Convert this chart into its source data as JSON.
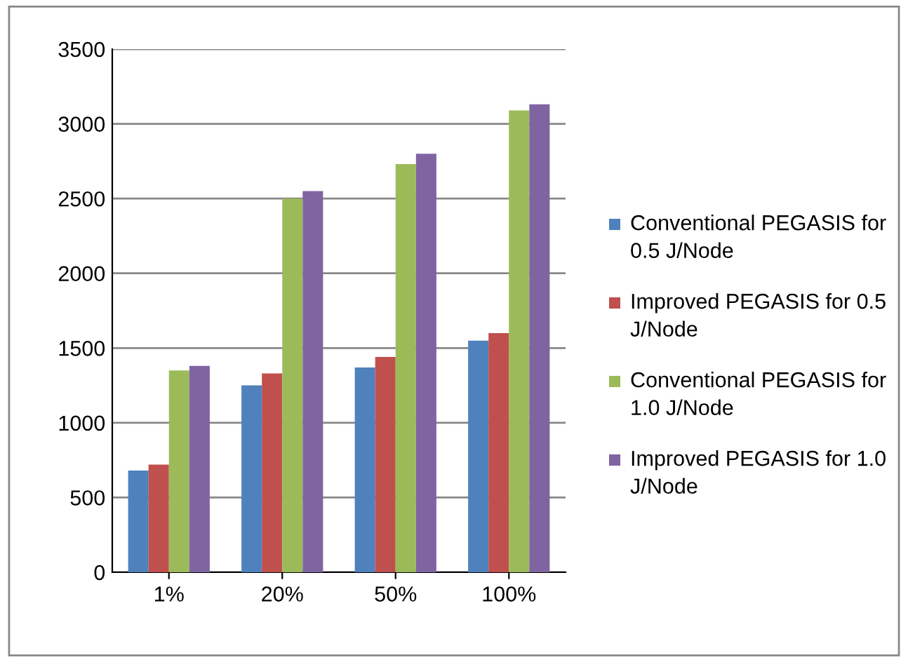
{
  "chart_data": {
    "type": "bar",
    "categories": [
      "1%",
      "20%",
      "50%",
      "100%"
    ],
    "series": [
      {
        "name": "Conventional PEGASIS for 0.5 J/Node",
        "color": "#4f81bd",
        "values": [
          680,
          1250,
          1370,
          1550
        ]
      },
      {
        "name": "Improved PEGASIS for 0.5 J/Node",
        "color": "#c0504d",
        "values": [
          720,
          1330,
          1440,
          1600
        ]
      },
      {
        "name": "Conventional PEGASIS for 1.0 J/Node",
        "color": "#9bbb59",
        "values": [
          1350,
          2500,
          2730,
          3090
        ]
      },
      {
        "name": "Improved PEGASIS for 1.0 J/Node",
        "color": "#8064a2",
        "values": [
          1380,
          2550,
          2800,
          3130
        ]
      }
    ],
    "ylim": [
      0,
      3500
    ],
    "yticks": [
      0,
      500,
      1000,
      1500,
      2000,
      2500,
      3000,
      3500
    ],
    "grid": "y",
    "legend": "right"
  }
}
